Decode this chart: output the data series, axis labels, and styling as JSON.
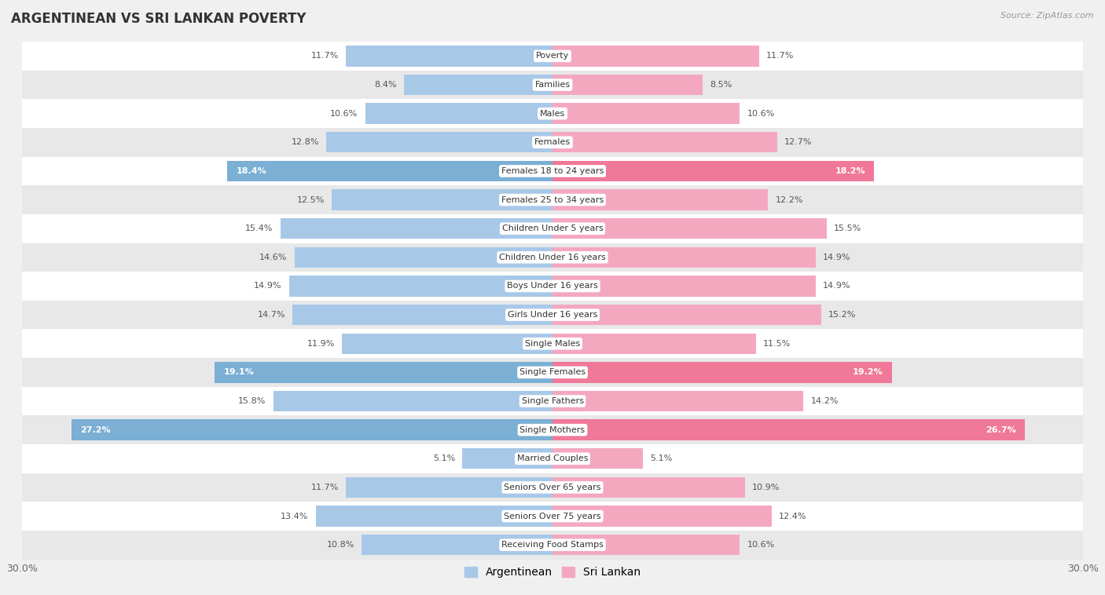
{
  "title": "ARGENTINEAN VS SRI LANKAN POVERTY",
  "source": "Source: ZipAtlas.com",
  "categories": [
    "Poverty",
    "Families",
    "Males",
    "Females",
    "Females 18 to 24 years",
    "Females 25 to 34 years",
    "Children Under 5 years",
    "Children Under 16 years",
    "Boys Under 16 years",
    "Girls Under 16 years",
    "Single Males",
    "Single Females",
    "Single Fathers",
    "Single Mothers",
    "Married Couples",
    "Seniors Over 65 years",
    "Seniors Over 75 years",
    "Receiving Food Stamps"
  ],
  "argentinean": [
    11.7,
    8.4,
    10.6,
    12.8,
    18.4,
    12.5,
    15.4,
    14.6,
    14.9,
    14.7,
    11.9,
    19.1,
    15.8,
    27.2,
    5.1,
    11.7,
    13.4,
    10.8
  ],
  "sri_lankan": [
    11.7,
    8.5,
    10.6,
    12.7,
    18.2,
    12.2,
    15.5,
    14.9,
    14.9,
    15.2,
    11.5,
    19.2,
    14.2,
    26.7,
    5.1,
    10.9,
    12.4,
    10.6
  ],
  "color_argentinean": "#a8c8e8",
  "color_sri_lankan": "#f4a8c0",
  "color_argentinean_highlight": "#7bafd4",
  "color_sri_lankan_highlight": "#f07898",
  "highlight_rows": [
    4,
    11,
    13
  ],
  "background_color": "#f0f0f0",
  "row_bg_light": "#ffffff",
  "row_bg_dark": "#e8e8e8",
  "max_value": 30.0,
  "bar_height": 0.72,
  "legend_labels": [
    "Argentinean",
    "Sri Lankan"
  ]
}
